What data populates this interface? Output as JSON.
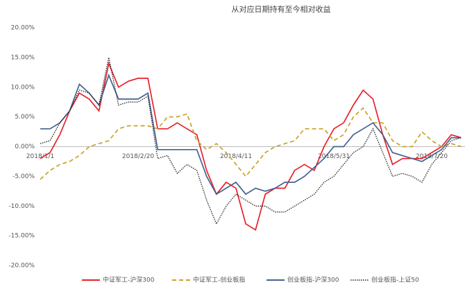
{
  "chart_data": {
    "type": "line",
    "title": "从对应日期持有至今相对收益",
    "x": [
      "2018/1/1",
      "2018/1/6",
      "2018/1/11",
      "2018/1/16",
      "2018/1/21",
      "2018/1/26",
      "2018/1/31",
      "2018/2/5",
      "2018/2/10",
      "2018/2/15",
      "2018/2/20",
      "2018/2/25",
      "2018/3/2",
      "2018/3/7",
      "2018/3/12",
      "2018/3/17",
      "2018/3/22",
      "2018/3/27",
      "2018/4/1",
      "2018/4/6",
      "2018/4/11",
      "2018/4/16",
      "2018/4/21",
      "2018/4/26",
      "2018/5/1",
      "2018/5/6",
      "2018/5/11",
      "2018/5/16",
      "2018/5/21",
      "2018/5/26",
      "2018/5/31",
      "2018/6/5",
      "2018/6/10",
      "2018/6/15",
      "2018/6/20",
      "2018/6/25",
      "2018/6/30",
      "2018/7/5",
      "2018/7/10",
      "2018/7/15",
      "2018/7/20",
      "2018/7/25",
      "2018/7/30",
      "2018/8/4"
    ],
    "series": [
      {
        "name": "中证军工-沪深300",
        "color": "#e8202a",
        "style": "solid",
        "values": [
          -2,
          -1,
          2,
          6,
          9,
          8,
          6,
          14,
          10,
          11,
          11.5,
          11.5,
          3,
          3,
          4,
          3,
          2,
          -4,
          -8,
          -6,
          -7,
          -13,
          -14,
          -8,
          -7,
          -7,
          -4,
          -3,
          -4,
          0,
          3,
          4,
          7,
          9.5,
          8,
          2,
          -3,
          -2,
          -2,
          -2,
          -1,
          0,
          2,
          1.5
        ]
      },
      {
        "name": "中证军工-创业板指",
        "color": "#c9a227",
        "style": "dashed",
        "values": [
          -5.5,
          -4,
          -3,
          -2.5,
          -1.5,
          0,
          0.5,
          1,
          3,
          3.5,
          3.5,
          3.5,
          3,
          5,
          5,
          5.5,
          1,
          -0.5,
          0.5,
          -1,
          -3,
          -5,
          -3,
          -1,
          0,
          0.5,
          1,
          3,
          3,
          3,
          1,
          2,
          5,
          6.5,
          4,
          4,
          1,
          0,
          0,
          2.5,
          1,
          0,
          0.5,
          0
        ]
      },
      {
        "name": "创业板指-沪深300",
        "color": "#44628f",
        "style": "solid",
        "values": [
          3,
          3,
          4,
          6,
          10.5,
          9,
          7,
          12,
          8,
          8,
          8,
          9,
          -0.5,
          -0.5,
          -0.5,
          -0.5,
          -0.5,
          -5,
          -8,
          -7,
          -6,
          -8,
          -7,
          -7.5,
          -7,
          -6,
          -6,
          -5,
          -3.5,
          -2,
          0,
          0,
          2,
          3,
          4,
          2,
          -1,
          -1.5,
          -2,
          -2.5,
          -1.5,
          -0.5,
          1.5,
          1.5
        ]
      },
      {
        "name": "创业板指-上证50",
        "color": "#222222",
        "style": "dotted",
        "values": [
          0.5,
          1,
          4,
          6,
          9.5,
          9,
          7,
          15,
          7,
          7.5,
          7.5,
          8.5,
          -2,
          -1.5,
          -4.5,
          -3,
          -4,
          -9,
          -13,
          -10,
          -8,
          -9,
          -10,
          -10,
          -11,
          -11,
          -10,
          -9,
          -8,
          -6,
          -5,
          -3,
          -1,
          0,
          3,
          -1,
          -5,
          -4.5,
          -5,
          -6,
          -3,
          -1,
          1,
          1.5
        ]
      }
    ],
    "xlim": [
      "2018/1/1",
      "2018/8/6"
    ],
    "xticks": [
      "2018/1/1",
      "2018/2/20",
      "2018/4/11",
      "2018/5/31",
      "2018/7/20"
    ],
    "ylim": [
      -20,
      20
    ],
    "yticks": [
      {
        "value": -20,
        "label": "-20.00%"
      },
      {
        "value": -15,
        "label": "-15.00%"
      },
      {
        "value": -10,
        "label": "-10.00%"
      },
      {
        "value": -5,
        "label": "-5.00%"
      },
      {
        "value": 0,
        "label": "0.00%"
      },
      {
        "value": 5,
        "label": "5.00%"
      },
      {
        "value": 10,
        "label": "10.00%"
      },
      {
        "value": 15,
        "label": "15.00%"
      },
      {
        "value": 20,
        "label": "20.00%"
      }
    ],
    "legend": "bottom"
  }
}
